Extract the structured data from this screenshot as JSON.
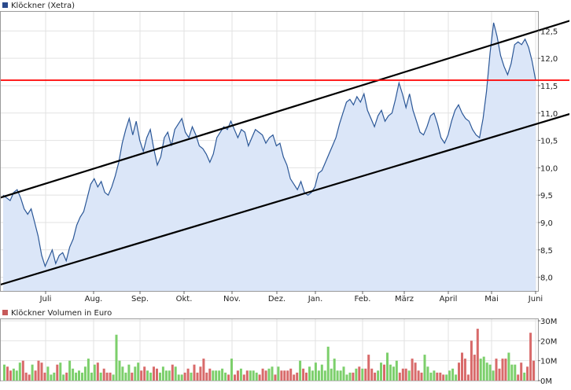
{
  "chart_data": [
    {
      "type": "line",
      "title": "",
      "legend": {
        "label": "Klöckner (Xetra)",
        "color": "#2b4a8c",
        "placement": "top-left"
      },
      "xlabel": "",
      "ylabel": "",
      "x_ticks": [
        "Juli",
        "Aug.",
        "Sep.",
        "Okt.",
        "Nov.",
        "Dez.",
        "Jan.",
        "Feb.",
        "März",
        "April",
        "Mai",
        "Juni"
      ],
      "y_ticks": [
        "8,0",
        "8,5",
        "9,0",
        "9,5",
        "10,0",
        "10,5",
        "11,0",
        "11,5",
        "12,0",
        "12,5"
      ],
      "ylim": [
        7.75,
        12.85
      ],
      "grid": true,
      "line_color": "#2b5797",
      "fill_color": "#dbe6f8",
      "series": [
        {
          "values": [
            9.5,
            9.45,
            9.4,
            9.55,
            9.6,
            9.45,
            9.25,
            9.15,
            9.25,
            9.0,
            8.75,
            8.4,
            8.2,
            8.35,
            8.5,
            8.25,
            8.4,
            8.45,
            8.3,
            8.55,
            8.7,
            8.95,
            9.1,
            9.2,
            9.45,
            9.7,
            9.8,
            9.65,
            9.75,
            9.55,
            9.5,
            9.65,
            9.85,
            10.1,
            10.45,
            10.7,
            10.9,
            10.6,
            10.85,
            10.5,
            10.3,
            10.55,
            10.7,
            10.35,
            10.05,
            10.2,
            10.55,
            10.65,
            10.4,
            10.7,
            10.8,
            10.9,
            10.65,
            10.55,
            10.75,
            10.6,
            10.4,
            10.35,
            10.25,
            10.1,
            10.25,
            10.55,
            10.65,
            10.75,
            10.7,
            10.85,
            10.7,
            10.55,
            10.7,
            10.65,
            10.4,
            10.55,
            10.7,
            10.65,
            10.6,
            10.45,
            10.55,
            10.6,
            10.4,
            10.45,
            10.2,
            10.05,
            9.8,
            9.7,
            9.6,
            9.75,
            9.55,
            9.5,
            9.55,
            9.65,
            9.9,
            9.95,
            10.1,
            10.25,
            10.4,
            10.55,
            10.8,
            11.0,
            11.2,
            11.25,
            11.15,
            11.3,
            11.2,
            11.35,
            11.05,
            10.9,
            10.75,
            10.95,
            11.05,
            10.85,
            10.95,
            11.0,
            11.25,
            11.55,
            11.35,
            11.1,
            11.35,
            11.05,
            10.85,
            10.65,
            10.6,
            10.75,
            10.95,
            11.0,
            10.8,
            10.55,
            10.45,
            10.6,
            10.85,
            11.05,
            11.15,
            11.0,
            10.9,
            10.85,
            10.7,
            10.6,
            10.55,
            10.9,
            11.4,
            12.1,
            12.65,
            12.4,
            12.05,
            11.85,
            11.7,
            11.9,
            12.25,
            12.3,
            12.25,
            12.35,
            12.2,
            11.95,
            11.6
          ]
        }
      ],
      "trendlines": [
        {
          "from": [
            0,
            9.47
          ],
          "to": [
            172,
            12.89
          ],
          "color": "#000000"
        },
        {
          "from": [
            0,
            7.88
          ],
          "to": [
            172,
            11.18
          ],
          "color": "#000000"
        },
        {
          "from": [
            0,
            11.6
          ],
          "to": [
            172,
            11.6
          ],
          "color": "#ff0000"
        }
      ]
    },
    {
      "type": "bar",
      "title": "",
      "legend": {
        "label": "Klöckner Volumen in Euro",
        "color": "#c75a5a",
        "placement": "top-left"
      },
      "y_ticks": [
        "0M",
        "10M",
        "20M",
        "30M"
      ],
      "ylim": [
        0,
        30
      ],
      "grid": true,
      "up_color": "#7ccf6b",
      "down_color": "#d86a6a",
      "series": [
        {
          "values": [
            8,
            7,
            5,
            6,
            5,
            9,
            10,
            4,
            3,
            8,
            5,
            10,
            9,
            4,
            7,
            3,
            4,
            8,
            9,
            3,
            4,
            10,
            6,
            4,
            5,
            4,
            7,
            11,
            4,
            8,
            9,
            4,
            6,
            4,
            4,
            3,
            23,
            10,
            7,
            4,
            8,
            4,
            7,
            9,
            5,
            7,
            5,
            4,
            7,
            6,
            4,
            7,
            5,
            5,
            8,
            7,
            3,
            3,
            4,
            6,
            4,
            8,
            4,
            7,
            11,
            4,
            6,
            5,
            5,
            5,
            6,
            4,
            3,
            11,
            3,
            5,
            6,
            3,
            5,
            5,
            5,
            4,
            3,
            6,
            5,
            6,
            7,
            3,
            7,
            5,
            5,
            5,
            6,
            3,
            4,
            10,
            6,
            4,
            7,
            5,
            9,
            5,
            8,
            5,
            17,
            6,
            11,
            5,
            5,
            7,
            3,
            4,
            4,
            6,
            7,
            6,
            6,
            13,
            6,
            4,
            5,
            9,
            8,
            14,
            8,
            7,
            10,
            4,
            6,
            6,
            5,
            11,
            9,
            5,
            4,
            13,
            7,
            4,
            5,
            4,
            4,
            3,
            3,
            5,
            6,
            3,
            9,
            14,
            11,
            3,
            20,
            13,
            26,
            11,
            12,
            9,
            8,
            5,
            11,
            6,
            11,
            11,
            14,
            8,
            8,
            3,
            9,
            4,
            7,
            24,
            10
          ]
        }
      ]
    }
  ]
}
